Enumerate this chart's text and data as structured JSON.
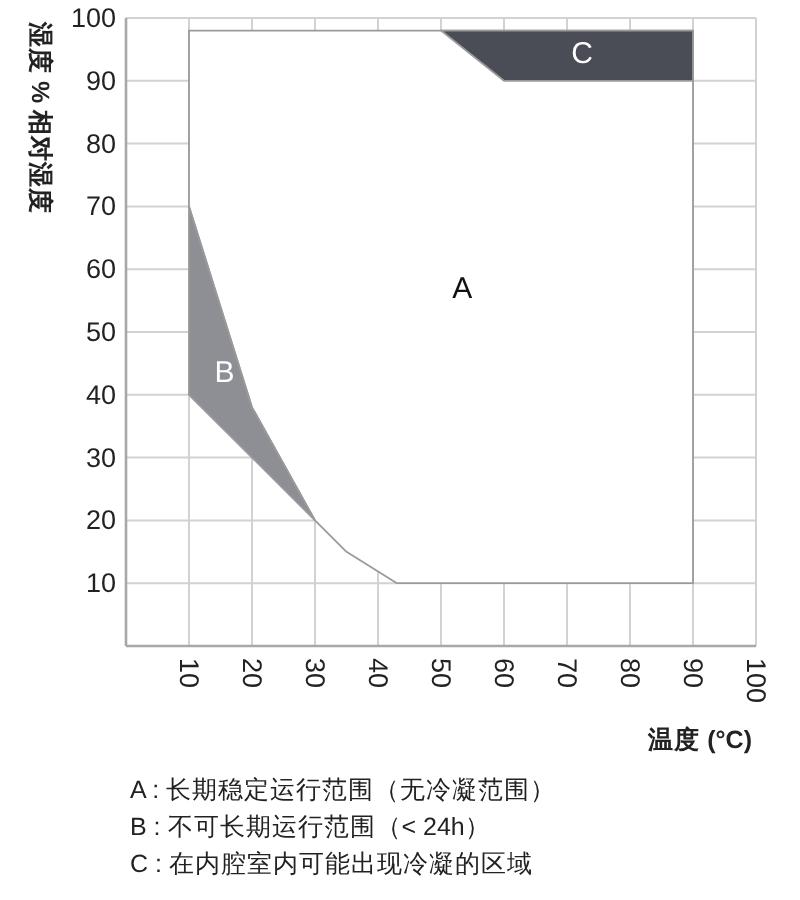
{
  "chart_data": {
    "type": "area",
    "xlabel": "温度 (°C)",
    "ylabel": "湿度 % 相对湿度",
    "xlim": [
      0,
      100
    ],
    "ylim": [
      0,
      100
    ],
    "xticks": [
      10,
      20,
      30,
      40,
      50,
      60,
      70,
      80,
      90,
      100
    ],
    "yticks": [
      10,
      20,
      30,
      40,
      50,
      60,
      70,
      80,
      90,
      100
    ],
    "grid": true,
    "series": [
      {
        "name": "A",
        "color": "#ffffff",
        "x": [
          10,
          90,
          90,
          43,
          35,
          30,
          20,
          10
        ],
        "values": [
          98,
          98,
          10,
          10,
          15,
          20,
          38,
          70
        ]
      },
      {
        "name": "B",
        "color": "#8e8f94",
        "x": [
          10,
          20,
          30,
          20,
          10
        ],
        "values": [
          70,
          38,
          20,
          30,
          40
        ]
      },
      {
        "name": "C",
        "color": "#4a4d55",
        "x": [
          50,
          90,
          90,
          60
        ],
        "values": [
          98,
          98,
          90,
          90
        ]
      }
    ],
    "annotations": [
      "A : 长期稳定运行范围（无冷凝范围）",
      "B : 不可长期运行范围（< 24h）",
      "C : 在内腔室内可能出现冷凝的区域"
    ]
  }
}
